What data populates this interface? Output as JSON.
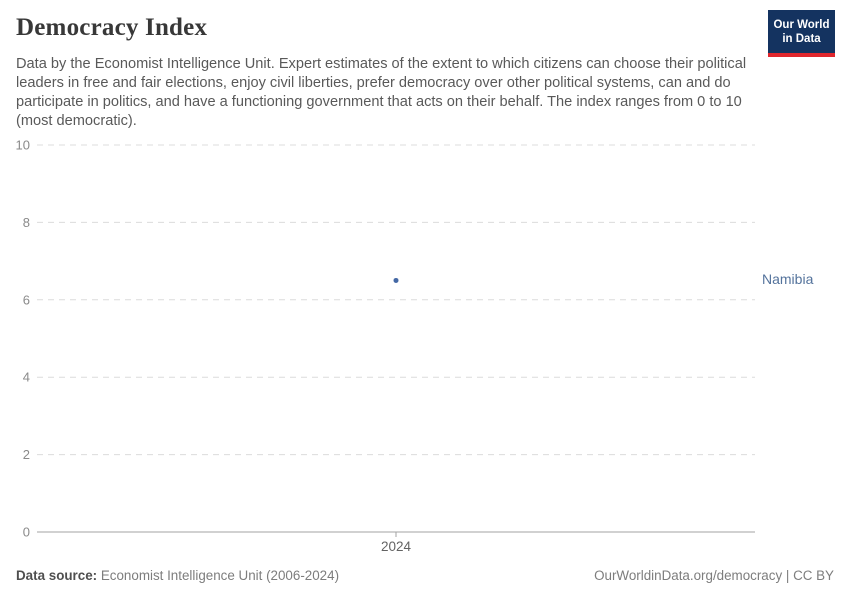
{
  "header": {
    "title": "Democracy Index",
    "subtitle": "Data by the Economist Intelligence Unit. Expert estimates of the extent to which citizens can choose their political leaders in free and fair elections, enjoy civil liberties, prefer democracy over other political systems, can and do participate in politics, and have a functioning government that acts on their behalf. The index ranges from 0 to 10 (most democratic).",
    "logo": {
      "line1": "Our World",
      "line2": "in Data",
      "bg_color": "#143360",
      "bar_color": "#e0262d"
    }
  },
  "chart_data": {
    "type": "scatter",
    "title": "Democracy Index",
    "x": [
      2024
    ],
    "series": [
      {
        "name": "Namibia",
        "values": [
          6.5
        ],
        "color": "#4468a5"
      }
    ],
    "entity_label": "Namibia",
    "entity_label_color": "#54739c",
    "xlabel": "",
    "ylabel": "",
    "ylim": [
      0,
      10
    ],
    "yticks": [
      0,
      2,
      4,
      6,
      8,
      10
    ],
    "xticks": [
      "2024"
    ],
    "grid": "horizontal-dashed",
    "gridline_color": "#dcdcdc",
    "axis_line_color": "#a3a3a3",
    "legend_position": "right-of-point"
  },
  "footer": {
    "data_source_label": "Data source:",
    "data_source_value": " Economist Intelligence Unit (2006-2024)",
    "credit": "OurWorldinData.org/democracy | CC BY"
  }
}
